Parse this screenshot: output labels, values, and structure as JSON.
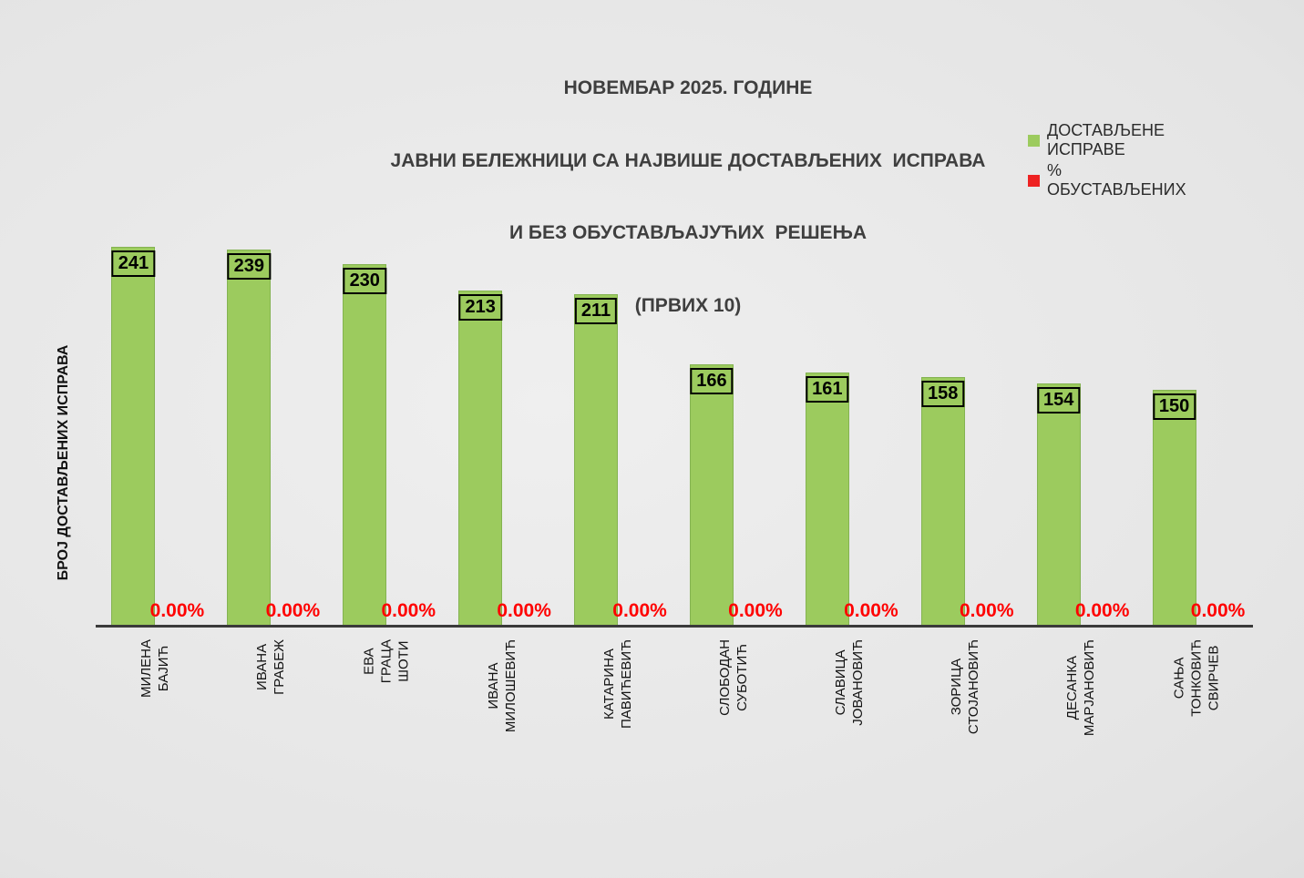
{
  "title": {
    "line1": "НОВЕМБАР 2025. ГОДИНЕ",
    "line2": "ЈАВНИ БЕЛЕЖНИЦИ СА НАЈВИШЕ ДОСТАВЉЕНИХ  ИСПРАВА",
    "line3": "И БЕЗ ОБУСТАВЉАЈУЋИХ  РЕШЕЊА",
    "line4": "(ПРВИХ 10)"
  },
  "legend": {
    "items": [
      {
        "label": "ДОСТАВЉЕНЕ  ИСПРАВЕ",
        "marker": "green-square",
        "color": "#9ccb5e"
      },
      {
        "label": "% ОБУСТАВЉЕНИХ",
        "marker": "red-square",
        "color": "#ee2222"
      }
    ]
  },
  "y_axis_title": "БРОЈ ДОСТАВЉЕНИХ ИСПРАВА",
  "colors": {
    "bar_fill": "#9ccb5e",
    "bar_border": "#84b351",
    "pct_text": "#ff0000",
    "title_text": "#3f3f3f",
    "axis_line": "#3a3a3a"
  },
  "chart_data": {
    "type": "bar",
    "title": "НОВЕМБАР 2025. ГОДИНЕ ЈАВНИ БЕЛЕЖНИЦИ СА НАЈВИШЕ ДОСТАВЉЕНИХ ИСПРАВА И БЕЗ ОБУСТАВЉАЈУЋИХ РЕШЕЊА (ПРВИХ 10)",
    "ylabel": "БРОЈ ДОСТАВЉЕНИХ ИСПРАВА",
    "xlabel": "",
    "ylim": [
      0,
      250
    ],
    "grid": false,
    "legend_position": "top-right",
    "categories": [
      "МИЛЕНА БАЈИЋ",
      "ИВАНА ГРАБЕЖ",
      "ЕВА ГРАЦА ШОТИ",
      "ИВАНА МИЛОШЕВИЋ",
      "КАТАРИНА ПАВИЋЕВИЋ",
      "СЛОБОДАН СУБОТИЋ",
      "СЛАВИЦА ЈОВАНОВИЋ",
      "ЗОРИЦА СТОЈАНОВИЋ",
      "ДЕСАНКА МАРЈАНОВИЋ",
      "САЊА ТОНКОВИЋ\nСВИРЧЕВ"
    ],
    "series": [
      {
        "name": "ДОСТАВЉЕНЕ ИСПРАВЕ",
        "type": "bar",
        "color": "#9ccb5e",
        "values": [
          241,
          239,
          230,
          213,
          211,
          166,
          161,
          158,
          154,
          150
        ]
      },
      {
        "name": "% ОБУСТАВЉЕНИХ",
        "type": "bar",
        "color": "#ff0000",
        "values": [
          0,
          0,
          0,
          0,
          0,
          0,
          0,
          0,
          0,
          0
        ],
        "labels": [
          "0.00%",
          "0.00%",
          "0.00%",
          "0.00%",
          "0.00%",
          "0.00%",
          "0.00%",
          "0.00%",
          "0.00%",
          "0.00%"
        ]
      }
    ]
  }
}
